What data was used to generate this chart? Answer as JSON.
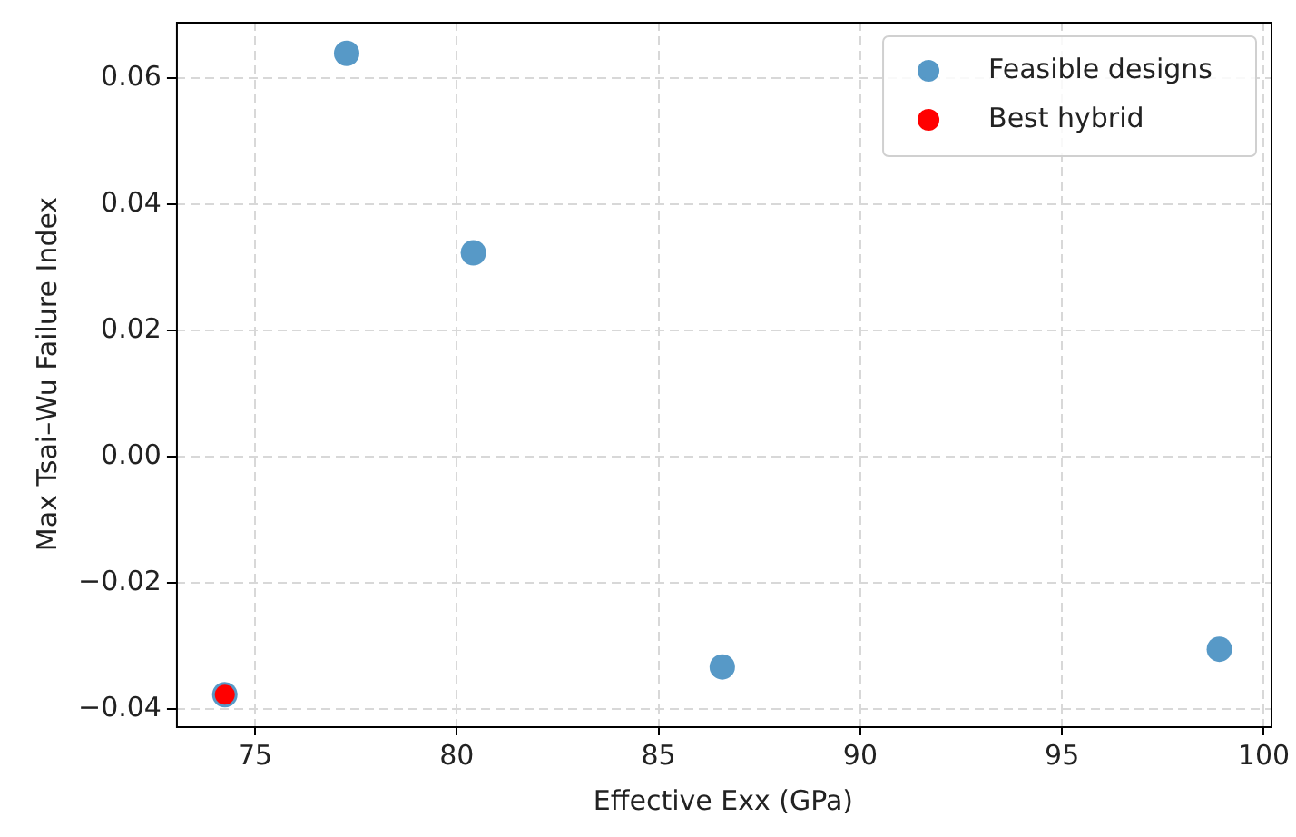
{
  "chart_data": {
    "type": "scatter",
    "xlabel": "Effective Exx (GPa)",
    "ylabel": "Max Tsai–Wu Failure Index",
    "series": [
      {
        "name": "Feasible designs",
        "color": "#1f77b4",
        "x": [
          77.27,
          80.41,
          86.58,
          98.9,
          74.25
        ],
        "values": [
          0.0639,
          0.0323,
          -0.0333,
          -0.0305,
          -0.0377
        ]
      },
      {
        "name": "Best hybrid",
        "color": "#ff0000",
        "x": [
          74.25
        ],
        "values": [
          -0.0377
        ]
      }
    ],
    "xlim": [
      73.04,
      100.17
    ],
    "xticks": [
      75,
      80,
      85,
      90,
      95,
      100
    ],
    "ylim": [
      -0.0427,
      0.0689
    ],
    "yticks": [
      {
        "value": -0.04,
        "label": "−0.04"
      },
      {
        "value": -0.02,
        "label": "−0.02"
      },
      {
        "value": 0,
        "label": "0.00"
      },
      {
        "value": 0.02,
        "label": "0.02"
      },
      {
        "value": 0.04,
        "label": "0.04"
      },
      {
        "value": 0.06,
        "label": "0.06"
      }
    ],
    "grid": true,
    "legend": "top right",
    "marker": "circle"
  }
}
